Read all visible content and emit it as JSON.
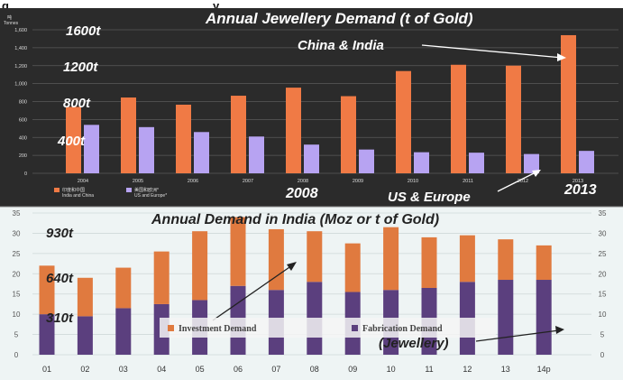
{
  "page": {
    "caption_fragment": "g",
    "caption_fragment2": "y"
  },
  "chart_data": [
    {
      "type": "bar",
      "title": "Annual Jewellery Demand (t of Gold)",
      "ylabel_cn": "吨",
      "ylabel": "Tonnes",
      "ylim": [
        0,
        1600
      ],
      "yticks": [
        "0",
        "200",
        "400",
        "600",
        "800",
        "1,000",
        "1,200",
        "1,400",
        "1,600"
      ],
      "ytick_values": [
        0,
        200,
        400,
        600,
        800,
        1000,
        1200,
        1400,
        1600
      ],
      "categories": [
        "2004",
        "2005",
        "2006",
        "2007",
        "2008",
        "2009",
        "2010",
        "2011",
        "2012",
        "2013"
      ],
      "series": [
        {
          "name": "India and China",
          "name_cn": "印度和中国",
          "color": "#f07a45",
          "values": [
            740,
            845,
            765,
            865,
            955,
            860,
            1140,
            1210,
            1200,
            1540
          ]
        },
        {
          "name": "US and Europe*",
          "name_cn": "美国和欧洲*",
          "color": "#b7a3f2",
          "values": [
            540,
            515,
            460,
            410,
            320,
            265,
            235,
            230,
            215,
            250
          ]
        }
      ],
      "annotations": {
        "t1600": "1600t",
        "t1200": "1200t",
        "t800": "800t",
        "t400": "400t",
        "china_india": "China & India",
        "us_europe": "US & Europe",
        "y2008": "2008",
        "y2013": "2013"
      },
      "background": "#2b2b2b",
      "grid": true
    },
    {
      "type": "bar",
      "title": "Annual Demand in India (Moz or t of Gold)",
      "ylim": [
        0,
        35
      ],
      "yticks_left": [
        "0",
        "5",
        "10",
        "15",
        "20",
        "25",
        "30",
        "35"
      ],
      "yticks_right": [
        "0",
        "5",
        "10",
        "15",
        "20",
        "25",
        "30",
        "35"
      ],
      "ytick_values": [
        0,
        5,
        10,
        15,
        20,
        25,
        30,
        35
      ],
      "categories": [
        "01",
        "02",
        "03",
        "04",
        "05",
        "06",
        "07",
        "08",
        "09",
        "10",
        "11",
        "12",
        "13",
        "14p"
      ],
      "series": [
        {
          "name": "Fabrication Demand",
          "color": "#5b3f7e",
          "values": [
            10,
            9.5,
            11.5,
            12.5,
            13.5,
            17,
            16,
            18,
            15.5,
            16,
            16.5,
            18,
            18.5,
            18.5
          ]
        },
        {
          "name": "Investment Demand",
          "color": "#e07a3f",
          "values": [
            12,
            9.5,
            10,
            13,
            17,
            17,
            15,
            12.5,
            12,
            15.5,
            12.5,
            11.5,
            10,
            8.5
          ]
        }
      ],
      "annotations": {
        "t930": "930t",
        "t640": "640t",
        "t310": "310t",
        "jewellery": "(Jewellery)"
      },
      "background": "#eef4f4",
      "grid": true
    }
  ]
}
